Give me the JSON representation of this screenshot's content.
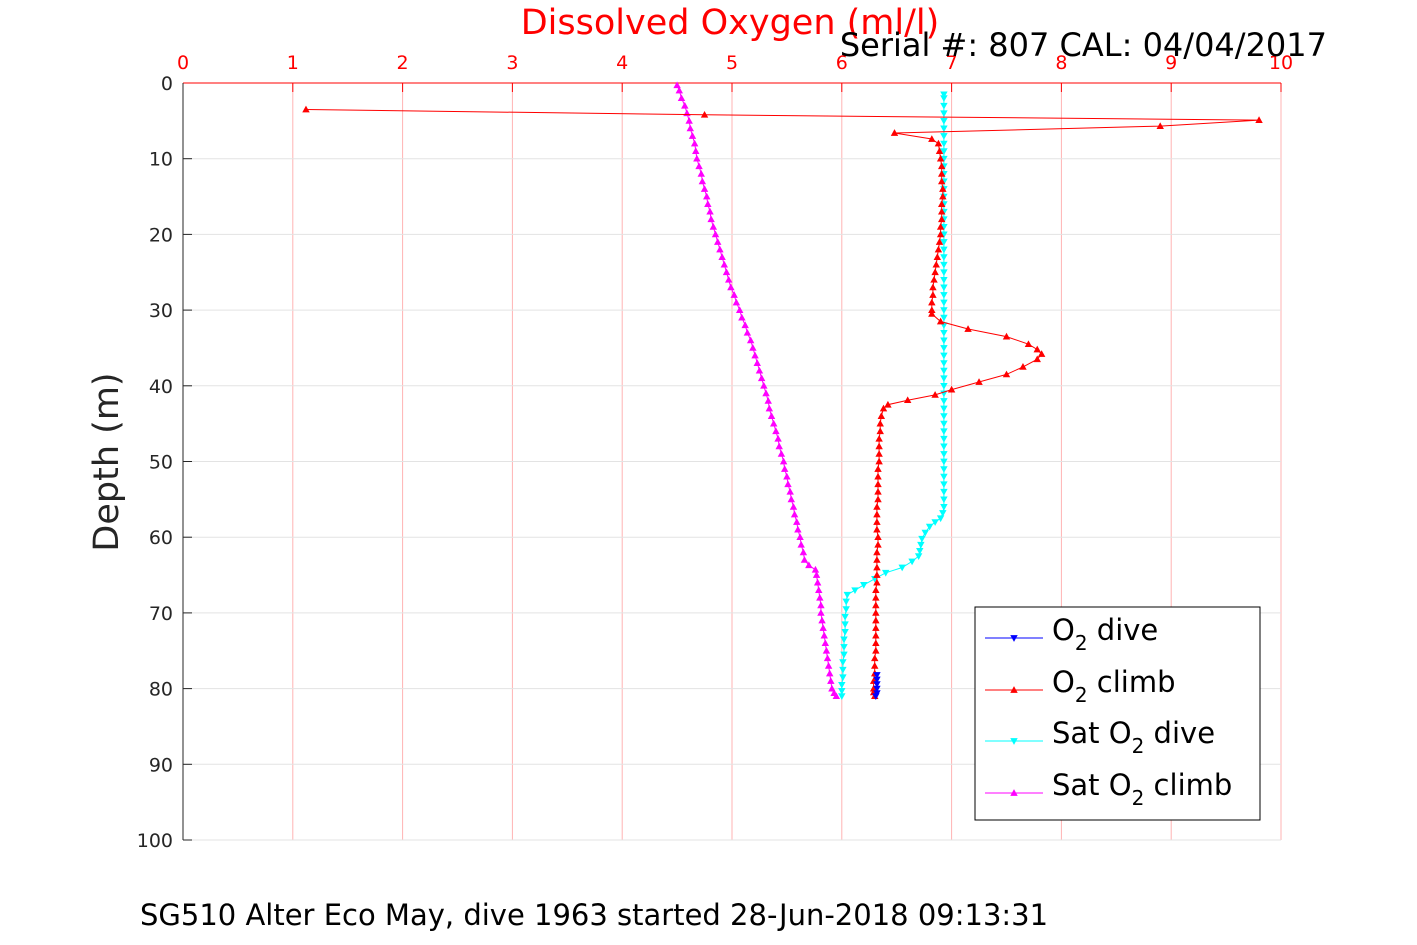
{
  "chart_data": {
    "type": "line",
    "title": "Dissolved Oxygen (ml/l)",
    "serial_label": "Serial #: 807  CAL: 04/04/2017",
    "ylabel": "Depth (m)",
    "footer": "SG510 Alter Eco May, dive 1963 started 28-Jun-2018 09:13:31",
    "xlim": [
      0,
      10
    ],
    "ylim": [
      0,
      100
    ],
    "y_reversed": true,
    "x_axis_position": "top",
    "grid": true,
    "legend_position": "bottom-right",
    "x_ticks": [
      "0",
      "1",
      "2",
      "3",
      "4",
      "5",
      "6",
      "7",
      "8",
      "9",
      "10"
    ],
    "y_ticks": [
      "0",
      "10",
      "20",
      "30",
      "40",
      "50",
      "60",
      "70",
      "80",
      "90",
      "100"
    ],
    "legend": [
      {
        "prefix": "O",
        "sub": "2",
        "suffix": " dive",
        "color": "#0000ff",
        "marker": "down"
      },
      {
        "prefix": "O",
        "sub": "2",
        "suffix": " climb",
        "color": "#ff0000",
        "marker": "up"
      },
      {
        "prefix": "Sat O",
        "sub": "2",
        "suffix": " dive",
        "color": "#00ffff",
        "marker": "down"
      },
      {
        "prefix": "Sat O",
        "sub": "2",
        "suffix": " climb",
        "color": "#ff00ff",
        "marker": "up"
      }
    ],
    "series": [
      {
        "name": "O2 dive",
        "color": "#0000ff",
        "marker": "down",
        "points": [
          [
            6.32,
            78.2
          ],
          [
            6.32,
            78.8
          ],
          [
            6.32,
            79.4
          ],
          [
            6.32,
            80.0
          ],
          [
            6.32,
            80.6
          ],
          [
            6.31,
            81.0
          ]
        ]
      },
      {
        "name": "O2 climb",
        "color": "#ff0000",
        "marker": "up",
        "points": [
          [
            6.3,
            81.0
          ],
          [
            6.29,
            80.5
          ],
          [
            6.29,
            80.0
          ],
          [
            6.29,
            79.0
          ],
          [
            6.3,
            78.0
          ],
          [
            6.3,
            77.0
          ],
          [
            6.3,
            76.0
          ],
          [
            6.31,
            75.0
          ],
          [
            6.31,
            74.0
          ],
          [
            6.31,
            73.0
          ],
          [
            6.31,
            72.0
          ],
          [
            6.31,
            71.0
          ],
          [
            6.31,
            70.0
          ],
          [
            6.31,
            69.0
          ],
          [
            6.31,
            68.0
          ],
          [
            6.31,
            67.0
          ],
          [
            6.32,
            66.0
          ],
          [
            6.32,
            65.0
          ],
          [
            6.32,
            64.0
          ],
          [
            6.32,
            63.0
          ],
          [
            6.32,
            62.0
          ],
          [
            6.33,
            61.0
          ],
          [
            6.33,
            60.0
          ],
          [
            6.32,
            59.0
          ],
          [
            6.32,
            58.0
          ],
          [
            6.32,
            57.0
          ],
          [
            6.32,
            56.0
          ],
          [
            6.33,
            55.0
          ],
          [
            6.33,
            54.0
          ],
          [
            6.33,
            53.0
          ],
          [
            6.33,
            52.0
          ],
          [
            6.33,
            51.0
          ],
          [
            6.34,
            50.0
          ],
          [
            6.34,
            49.0
          ],
          [
            6.34,
            48.0
          ],
          [
            6.34,
            47.0
          ],
          [
            6.35,
            46.0
          ],
          [
            6.35,
            45.0
          ],
          [
            6.36,
            44.0
          ],
          [
            6.38,
            43.0
          ],
          [
            6.42,
            42.5
          ],
          [
            6.6,
            41.9
          ],
          [
            6.85,
            41.2
          ],
          [
            7.0,
            40.5
          ],
          [
            7.25,
            39.5
          ],
          [
            7.5,
            38.5
          ],
          [
            7.65,
            37.5
          ],
          [
            7.78,
            36.5
          ],
          [
            7.82,
            35.8
          ],
          [
            7.78,
            35.2
          ],
          [
            7.7,
            34.5
          ],
          [
            7.5,
            33.5
          ],
          [
            7.15,
            32.5
          ],
          [
            6.9,
            31.5
          ],
          [
            6.82,
            30.5
          ],
          [
            6.82,
            30.0
          ],
          [
            6.82,
            29.0
          ],
          [
            6.83,
            28.0
          ],
          [
            6.83,
            27.0
          ],
          [
            6.84,
            26.0
          ],
          [
            6.85,
            25.0
          ],
          [
            6.86,
            24.0
          ],
          [
            6.87,
            23.0
          ],
          [
            6.88,
            22.0
          ],
          [
            6.89,
            21.0
          ],
          [
            6.9,
            20.0
          ],
          [
            6.9,
            19.0
          ],
          [
            6.91,
            18.0
          ],
          [
            6.91,
            17.0
          ],
          [
            6.91,
            16.0
          ],
          [
            6.92,
            15.0
          ],
          [
            6.92,
            14.0
          ],
          [
            6.91,
            13.0
          ],
          [
            6.91,
            12.0
          ],
          [
            6.91,
            11.0
          ],
          [
            6.9,
            10.0
          ],
          [
            6.89,
            9.0
          ],
          [
            6.88,
            8.0
          ],
          [
            6.82,
            7.4
          ],
          [
            6.48,
            6.6
          ],
          [
            8.9,
            5.7
          ],
          [
            9.8,
            4.9
          ],
          [
            4.75,
            4.2
          ],
          [
            1.12,
            3.5
          ]
        ]
      },
      {
        "name": "Sat O2 dive",
        "color": "#00ffff",
        "marker": "down",
        "points": [
          [
            6.93,
            1.5
          ],
          [
            6.93,
            2.0
          ],
          [
            6.93,
            3.0
          ],
          [
            6.93,
            4.0
          ],
          [
            6.93,
            5.0
          ],
          [
            6.93,
            6.0
          ],
          [
            6.93,
            7.0
          ],
          [
            6.93,
            8.0
          ],
          [
            6.93,
            9.0
          ],
          [
            6.93,
            10.0
          ],
          [
            6.93,
            11.0
          ],
          [
            6.93,
            12.0
          ],
          [
            6.93,
            13.0
          ],
          [
            6.93,
            14.0
          ],
          [
            6.93,
            15.0
          ],
          [
            6.93,
            16.0
          ],
          [
            6.93,
            17.0
          ],
          [
            6.93,
            18.0
          ],
          [
            6.93,
            19.0
          ],
          [
            6.93,
            20.0
          ],
          [
            6.93,
            21.0
          ],
          [
            6.93,
            22.0
          ],
          [
            6.93,
            23.0
          ],
          [
            6.93,
            24.0
          ],
          [
            6.93,
            25.0
          ],
          [
            6.93,
            26.0
          ],
          [
            6.93,
            27.0
          ],
          [
            6.93,
            28.0
          ],
          [
            6.93,
            29.0
          ],
          [
            6.93,
            30.0
          ],
          [
            6.93,
            31.0
          ],
          [
            6.93,
            32.0
          ],
          [
            6.93,
            33.0
          ],
          [
            6.93,
            34.0
          ],
          [
            6.93,
            35.0
          ],
          [
            6.93,
            36.0
          ],
          [
            6.93,
            37.0
          ],
          [
            6.93,
            38.0
          ],
          [
            6.93,
            39.0
          ],
          [
            6.93,
            40.0
          ],
          [
            6.93,
            41.0
          ],
          [
            6.93,
            42.0
          ],
          [
            6.93,
            43.0
          ],
          [
            6.93,
            44.0
          ],
          [
            6.93,
            45.0
          ],
          [
            6.93,
            46.0
          ],
          [
            6.93,
            47.0
          ],
          [
            6.93,
            48.0
          ],
          [
            6.93,
            49.0
          ],
          [
            6.93,
            50.0
          ],
          [
            6.93,
            51.0
          ],
          [
            6.93,
            52.0
          ],
          [
            6.93,
            53.0
          ],
          [
            6.93,
            54.0
          ],
          [
            6.93,
            55.0
          ],
          [
            6.93,
            56.0
          ],
          [
            6.92,
            56.8
          ],
          [
            6.9,
            57.5
          ],
          [
            6.85,
            58.0
          ],
          [
            6.8,
            58.6
          ],
          [
            6.76,
            59.4
          ],
          [
            6.73,
            60.2
          ],
          [
            6.72,
            61.0
          ],
          [
            6.71,
            61.8
          ],
          [
            6.7,
            62.5
          ],
          [
            6.64,
            63.2
          ],
          [
            6.55,
            64.0
          ],
          [
            6.4,
            64.7
          ],
          [
            6.3,
            65.5
          ],
          [
            6.2,
            66.3
          ],
          [
            6.12,
            67.0
          ],
          [
            6.05,
            67.6
          ],
          [
            6.04,
            68.5
          ],
          [
            6.04,
            69.5
          ],
          [
            6.03,
            70.5
          ],
          [
            6.03,
            71.5
          ],
          [
            6.03,
            72.5
          ],
          [
            6.02,
            73.5
          ],
          [
            6.02,
            74.5
          ],
          [
            6.02,
            75.5
          ],
          [
            6.01,
            76.5
          ],
          [
            6.01,
            77.5
          ],
          [
            6.01,
            78.5
          ],
          [
            6.0,
            79.5
          ],
          [
            6.0,
            80.3
          ],
          [
            6.0,
            81.0
          ]
        ]
      },
      {
        "name": "Sat O2 climb",
        "color": "#ff00ff",
        "marker": "up",
        "points": [
          [
            4.5,
            0.3
          ],
          [
            4.52,
            1.0
          ],
          [
            4.54,
            2.0
          ],
          [
            4.57,
            3.0
          ],
          [
            4.59,
            4.0
          ],
          [
            4.61,
            5.0
          ],
          [
            4.62,
            6.0
          ],
          [
            4.64,
            7.0
          ],
          [
            4.66,
            8.0
          ],
          [
            4.67,
            9.0
          ],
          [
            4.68,
            10.0
          ],
          [
            4.7,
            11.0
          ],
          [
            4.72,
            12.0
          ],
          [
            4.73,
            13.0
          ],
          [
            4.75,
            14.0
          ],
          [
            4.77,
            15.0
          ],
          [
            4.78,
            16.0
          ],
          [
            4.8,
            17.0
          ],
          [
            4.81,
            18.0
          ],
          [
            4.83,
            19.0
          ],
          [
            4.85,
            20.0
          ],
          [
            4.87,
            21.0
          ],
          [
            4.89,
            22.0
          ],
          [
            4.91,
            23.0
          ],
          [
            4.93,
            24.0
          ],
          [
            4.95,
            25.0
          ],
          [
            4.97,
            26.0
          ],
          [
            4.99,
            27.0
          ],
          [
            5.02,
            28.0
          ],
          [
            5.04,
            29.0
          ],
          [
            5.07,
            30.0
          ],
          [
            5.09,
            31.0
          ],
          [
            5.12,
            32.0
          ],
          [
            5.14,
            33.0
          ],
          [
            5.17,
            34.0
          ],
          [
            5.19,
            35.0
          ],
          [
            5.21,
            36.0
          ],
          [
            5.23,
            37.0
          ],
          [
            5.25,
            38.0
          ],
          [
            5.27,
            39.0
          ],
          [
            5.29,
            40.0
          ],
          [
            5.31,
            41.0
          ],
          [
            5.33,
            42.0
          ],
          [
            5.34,
            43.0
          ],
          [
            5.36,
            44.0
          ],
          [
            5.38,
            45.0
          ],
          [
            5.4,
            46.0
          ],
          [
            5.42,
            47.0
          ],
          [
            5.43,
            48.0
          ],
          [
            5.45,
            49.0
          ],
          [
            5.47,
            50.0
          ],
          [
            5.48,
            51.0
          ],
          [
            5.5,
            52.0
          ],
          [
            5.51,
            53.0
          ],
          [
            5.53,
            54.0
          ],
          [
            5.54,
            55.0
          ],
          [
            5.56,
            56.0
          ],
          [
            5.57,
            57.0
          ],
          [
            5.59,
            58.0
          ],
          [
            5.6,
            59.0
          ],
          [
            5.62,
            60.0
          ],
          [
            5.63,
            61.0
          ],
          [
            5.65,
            62.0
          ],
          [
            5.66,
            63.0
          ],
          [
            5.7,
            63.7
          ],
          [
            5.76,
            64.3
          ],
          [
            5.77,
            65.0
          ],
          [
            5.78,
            66.0
          ],
          [
            5.79,
            67.0
          ],
          [
            5.8,
            68.0
          ],
          [
            5.81,
            69.0
          ],
          [
            5.81,
            70.0
          ],
          [
            5.82,
            71.0
          ],
          [
            5.83,
            72.0
          ],
          [
            5.84,
            73.0
          ],
          [
            5.85,
            74.0
          ],
          [
            5.86,
            75.0
          ],
          [
            5.87,
            76.0
          ],
          [
            5.88,
            77.0
          ],
          [
            5.89,
            78.0
          ],
          [
            5.9,
            79.0
          ],
          [
            5.91,
            80.0
          ],
          [
            5.93,
            80.6
          ],
          [
            5.95,
            81.0
          ]
        ]
      }
    ]
  }
}
